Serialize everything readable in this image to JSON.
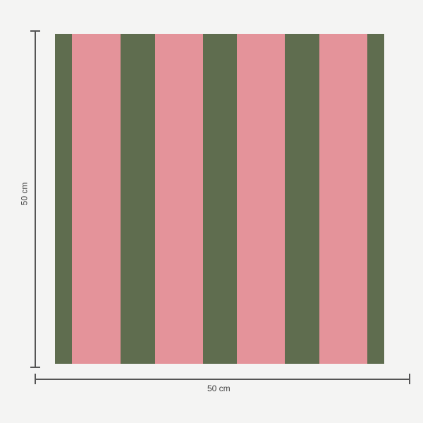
{
  "colors": {
    "green": "#5f6d4f",
    "pink": "#e4939a",
    "background": "#f4f4f3",
    "dimension_line": "#555555"
  },
  "swatch": {
    "stripes": [
      "green",
      "pink",
      "green",
      "pink",
      "green",
      "pink",
      "green",
      "pink",
      "green"
    ]
  },
  "dimensions": {
    "height_label": "50 cm",
    "width_label": "50 cm"
  }
}
